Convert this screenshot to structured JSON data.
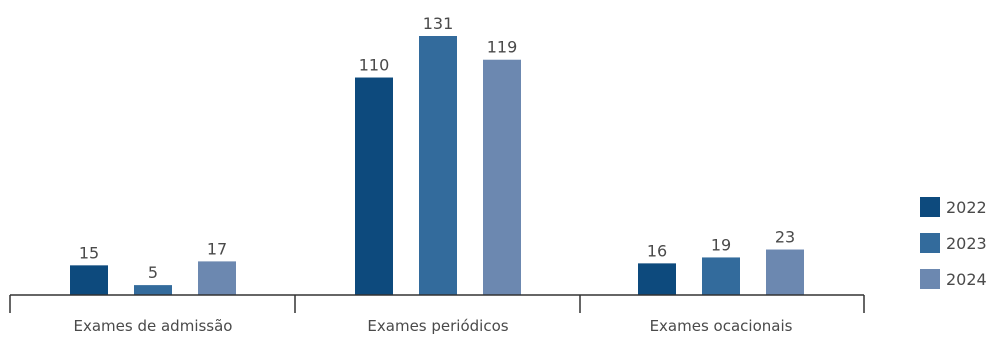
{
  "chart_data": {
    "type": "bar",
    "categories": [
      "Exames de admissão",
      "Exames periódicos",
      "Exames ocacionais"
    ],
    "series": [
      {
        "name": "2022",
        "color": "#0d4a7d",
        "values": [
          15,
          110,
          16
        ]
      },
      {
        "name": "2023",
        "color": "#336b9c",
        "values": [
          5,
          131,
          19
        ]
      },
      {
        "name": "2024",
        "color": "#6c88b0",
        "values": [
          17,
          119,
          23
        ]
      }
    ],
    "ylim": [
      0,
      131
    ],
    "grid": false,
    "legend_position": "right"
  }
}
